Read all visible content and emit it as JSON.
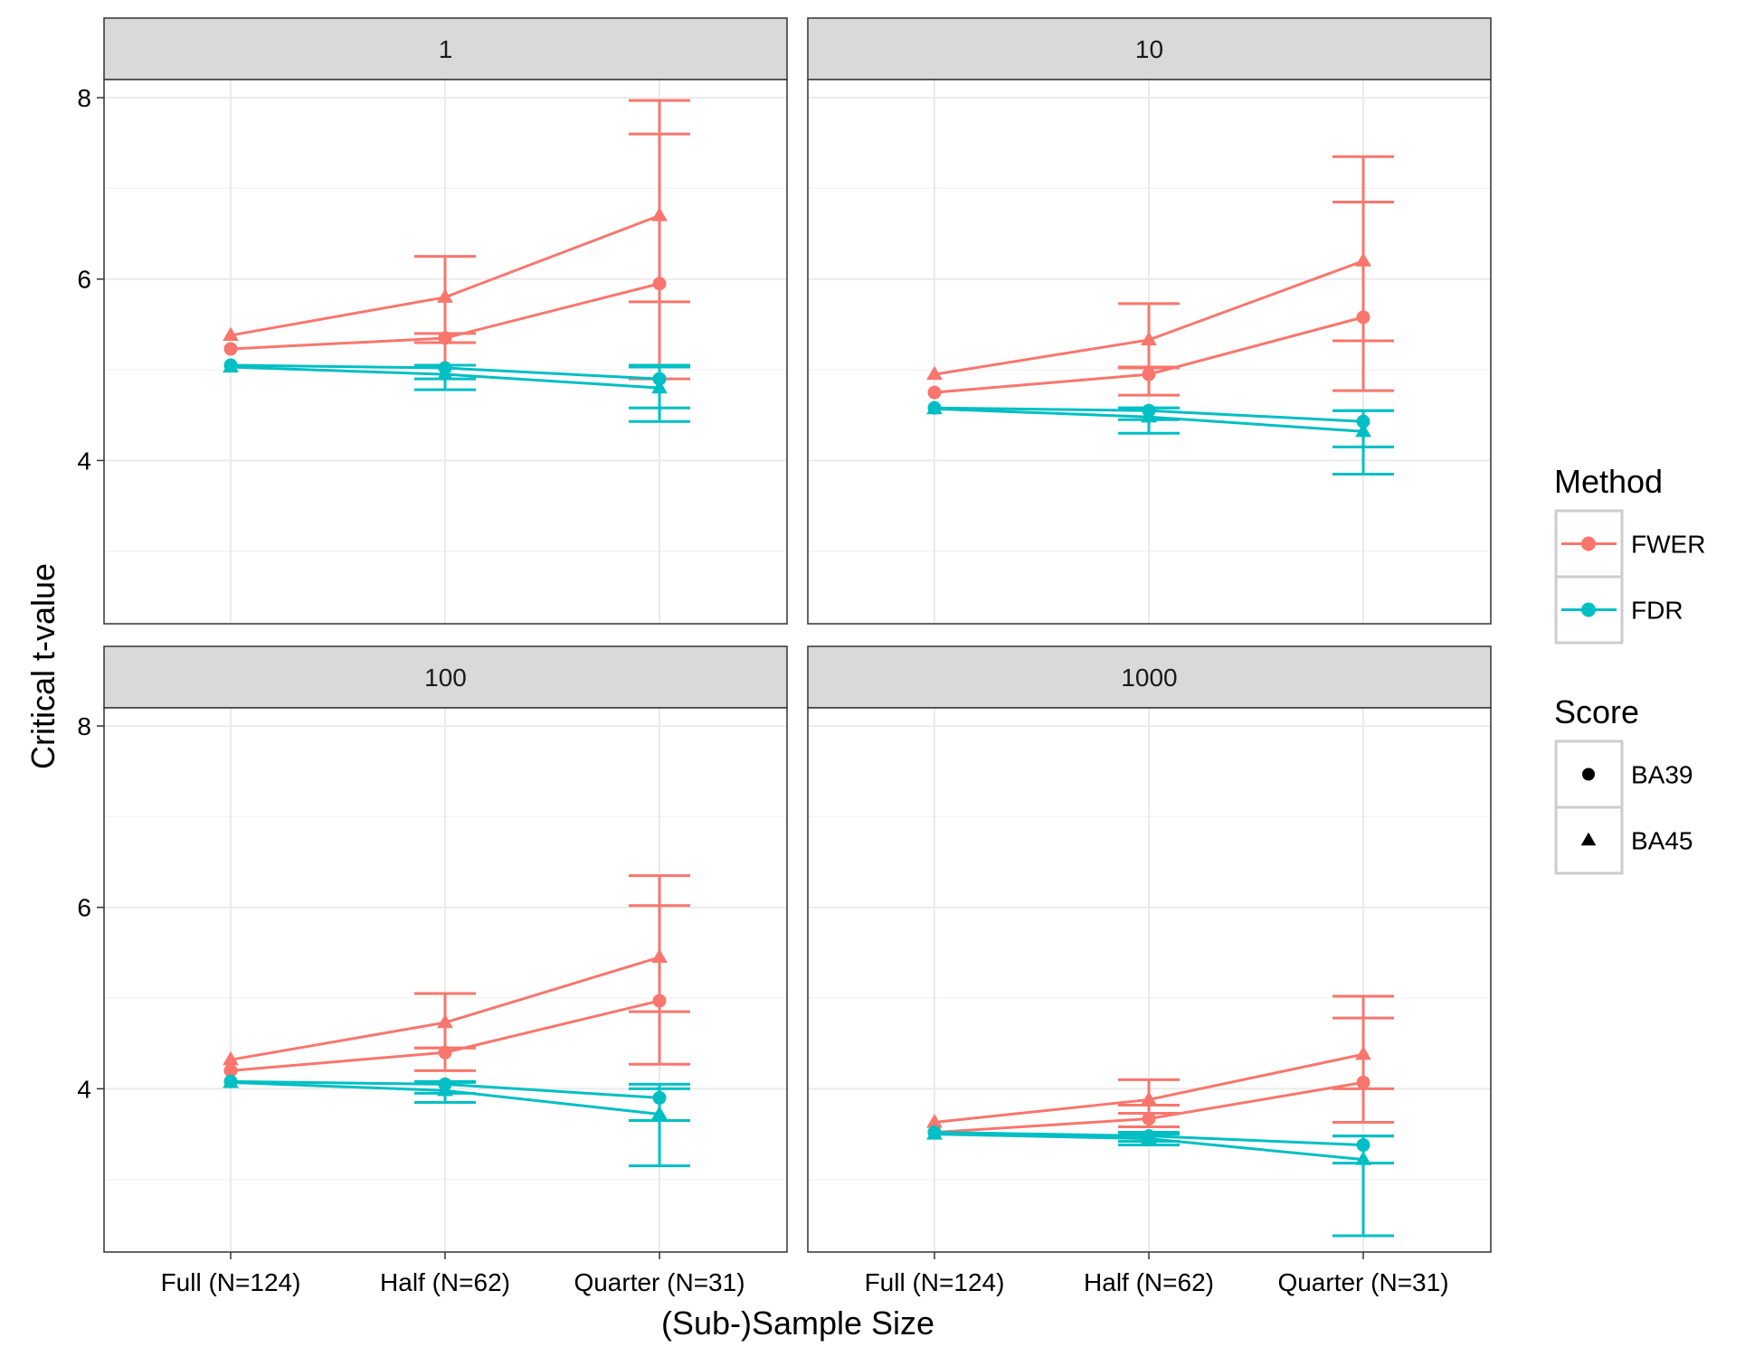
{
  "chart_data": {
    "type": "line",
    "facet_by": "window",
    "ylabel": "Critical t-value",
    "xlabel": "(Sub-)Sample Size",
    "categories": [
      "Full (N=124)",
      "Half (N=62)",
      "Quarter (N=31)"
    ],
    "y_ticks": [
      4,
      6,
      8
    ],
    "ylim": [
      2.2,
      8.2
    ],
    "grid": true,
    "legend_position": "right",
    "legends": [
      {
        "title": "Method",
        "entries": [
          {
            "label": "FWER",
            "color": "#F8766D"
          },
          {
            "label": "FDR",
            "color": "#00BFC4"
          }
        ]
      },
      {
        "title": "Score",
        "entries": [
          {
            "label": "BA39",
            "shape": "circle"
          },
          {
            "label": "BA45",
            "shape": "triangle"
          }
        ]
      }
    ],
    "panels": [
      {
        "label": "1",
        "series": [
          {
            "method": "FWER",
            "score": "BA39",
            "values": [
              5.23,
              5.35,
              5.95
            ],
            "err_lo": [
              5.23,
              5.3,
              4.9
            ],
            "err_hi": [
              5.23,
              5.4,
              7.6
            ]
          },
          {
            "method": "FWER",
            "score": "BA45",
            "values": [
              5.38,
              5.8,
              6.7
            ],
            "err_lo": [
              5.38,
              5.05,
              5.75
            ],
            "err_hi": [
              5.38,
              6.25,
              7.97
            ]
          },
          {
            "method": "FDR",
            "score": "BA39",
            "values": [
              5.05,
              5.02,
              4.9
            ],
            "err_lo": [
              5.05,
              4.9,
              4.58
            ],
            "err_hi": [
              5.05,
              5.05,
              5.05
            ]
          },
          {
            "method": "FDR",
            "score": "BA45",
            "values": [
              5.03,
              4.95,
              4.8
            ],
            "err_lo": [
              5.03,
              4.78,
              4.43
            ],
            "err_hi": [
              5.03,
              5.05,
              5.03
            ]
          }
        ]
      },
      {
        "label": "10",
        "series": [
          {
            "method": "FWER",
            "score": "BA39",
            "values": [
              4.75,
              4.95,
              5.58
            ],
            "err_lo": [
              4.75,
              4.72,
              4.77
            ],
            "err_hi": [
              4.75,
              5.03,
              6.85
            ]
          },
          {
            "method": "FWER",
            "score": "BA45",
            "values": [
              4.95,
              5.33,
              6.2
            ],
            "err_lo": [
              4.95,
              5.02,
              5.32
            ],
            "err_hi": [
              4.95,
              5.73,
              7.35
            ]
          },
          {
            "method": "FDR",
            "score": "BA39",
            "values": [
              4.58,
              4.55,
              4.43
            ],
            "err_lo": [
              4.58,
              4.45,
              4.15
            ],
            "err_hi": [
              4.58,
              4.58,
              4.55
            ]
          },
          {
            "method": "FDR",
            "score": "BA45",
            "values": [
              4.57,
              4.48,
              4.32
            ],
            "err_lo": [
              4.57,
              4.3,
              3.85
            ],
            "err_hi": [
              4.57,
              4.58,
              4.55
            ]
          }
        ]
      },
      {
        "label": "100",
        "series": [
          {
            "method": "FWER",
            "score": "BA39",
            "values": [
              4.2,
              4.4,
              4.97
            ],
            "err_lo": [
              4.2,
              4.2,
              4.27
            ],
            "err_hi": [
              4.2,
              4.45,
              6.02
            ]
          },
          {
            "method": "FWER",
            "score": "BA45",
            "values": [
              4.32,
              4.73,
              5.45
            ],
            "err_lo": [
              4.32,
              4.45,
              4.85
            ],
            "err_hi": [
              4.32,
              5.05,
              6.35
            ]
          },
          {
            "method": "FDR",
            "score": "BA39",
            "values": [
              4.08,
              4.05,
              3.9
            ],
            "err_lo": [
              4.08,
              3.95,
              3.65
            ],
            "err_hi": [
              4.08,
              4.08,
              4.05
            ]
          },
          {
            "method": "FDR",
            "score": "BA45",
            "values": [
              4.07,
              3.98,
              3.72
            ],
            "err_lo": [
              4.07,
              3.85,
              3.15
            ],
            "err_hi": [
              4.07,
              4.07,
              4.0
            ]
          }
        ]
      },
      {
        "label": "1000",
        "series": [
          {
            "method": "FWER",
            "score": "BA39",
            "values": [
              3.52,
              3.67,
              4.07
            ],
            "err_lo": [
              3.52,
              3.58,
              3.63
            ],
            "err_hi": [
              3.52,
              3.82,
              4.78
            ]
          },
          {
            "method": "FWER",
            "score": "BA45",
            "values": [
              3.63,
              3.88,
              4.38
            ],
            "err_lo": [
              3.63,
              3.73,
              4.0
            ],
            "err_hi": [
              3.63,
              4.1,
              5.02
            ]
          },
          {
            "method": "FDR",
            "score": "BA39",
            "values": [
              3.52,
              3.48,
              3.38
            ],
            "err_lo": [
              3.52,
              3.42,
              3.18
            ],
            "err_hi": [
              3.52,
              3.52,
              3.48
            ]
          },
          {
            "method": "FDR",
            "score": "BA45",
            "values": [
              3.5,
              3.45,
              3.22
            ],
            "err_lo": [
              3.5,
              3.38,
              2.38
            ],
            "err_hi": [
              3.5,
              3.5,
              3.48
            ]
          }
        ]
      }
    ]
  }
}
